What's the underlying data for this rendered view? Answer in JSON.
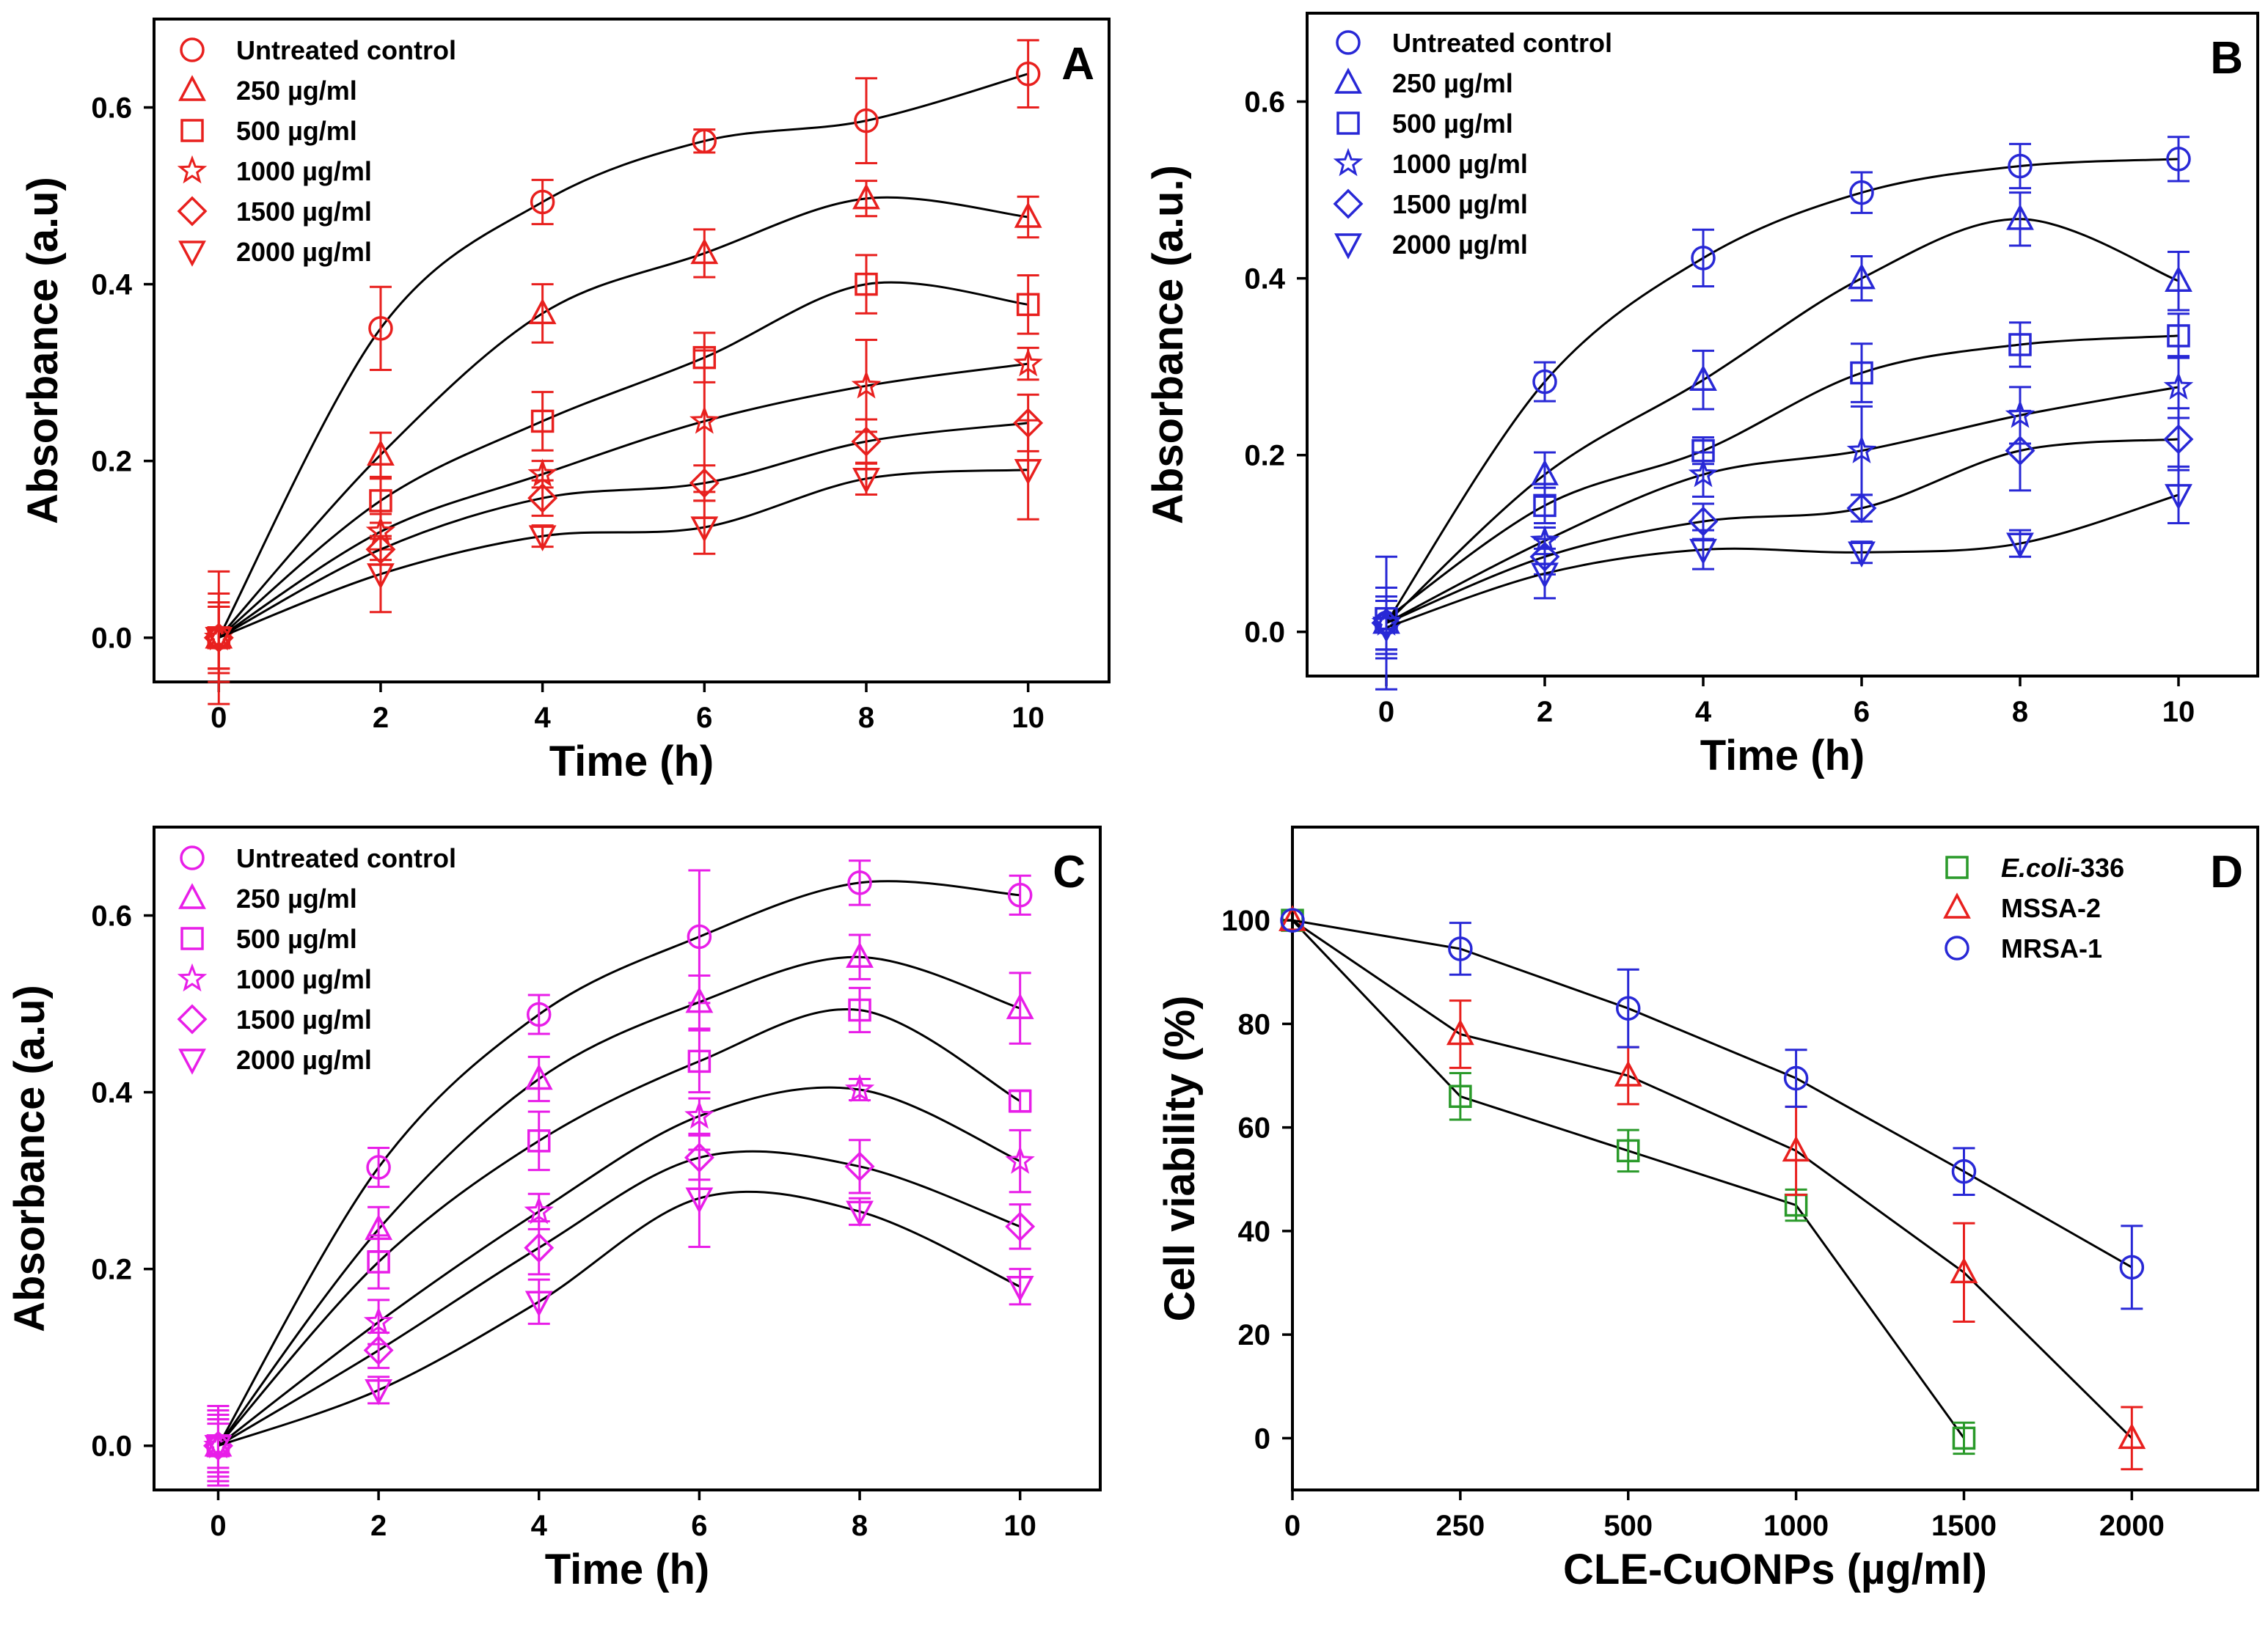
{
  "chart_data": [
    {
      "panel": "A",
      "type": "line",
      "color": "#e8201e",
      "xlabel": "Time (h)",
      "ylabel": "Absorbance (a.u)",
      "xlim": [
        -0.8,
        11
      ],
      "ylim": [
        -0.05,
        0.7
      ],
      "xticks": [
        0,
        2,
        4,
        6,
        8,
        10
      ],
      "xtick_labels": [
        "0",
        "2",
        "4",
        "6",
        "8",
        "10"
      ],
      "yticks": [
        0.0,
        0.2,
        0.4,
        0.6
      ],
      "ytick_labels": [
        "0.0",
        "0.2",
        "0.4",
        "0.6"
      ],
      "x": [
        0,
        2,
        4,
        6,
        8,
        10
      ],
      "series": [
        {
          "name": "Untreated control",
          "marker": "circle",
          "values": [
            0.0,
            0.35,
            0.493,
            0.562,
            0.585,
            0.638
          ],
          "errors": [
            0.075,
            0.047,
            0.025,
            0.013,
            0.048,
            0.038
          ]
        },
        {
          "name": "250 µg/ml",
          "marker": "triangle",
          "values": [
            0.0,
            0.207,
            0.367,
            0.435,
            0.497,
            0.476
          ],
          "errors": [
            0.05,
            0.025,
            0.033,
            0.027,
            0.02,
            0.023
          ]
        },
        {
          "name": "500 µg/ml",
          "marker": "square",
          "values": [
            0.0,
            0.155,
            0.245,
            0.317,
            0.4,
            0.377
          ],
          "errors": [
            0.04,
            0.025,
            0.033,
            0.028,
            0.033,
            0.033
          ]
        },
        {
          "name": "1000 µg/ml",
          "marker": "star",
          "values": [
            0.0,
            0.12,
            0.185,
            0.245,
            0.285,
            0.31
          ],
          "errors": [
            0.035,
            0.02,
            0.015,
            0.08,
            0.052,
            0.018
          ]
        },
        {
          "name": "1500 µg/ml",
          "marker": "diamond",
          "values": [
            0.0,
            0.1,
            0.158,
            0.175,
            0.222,
            0.243
          ],
          "errors": [
            0.035,
            0.012,
            0.02,
            0.02,
            0.025,
            0.032
          ]
        },
        {
          "name": "2000 µg/ml",
          "marker": "triangle-down",
          "values": [
            0.0,
            0.072,
            0.115,
            0.125,
            0.18,
            0.19
          ],
          "errors": [
            0.035,
            0.043,
            0.012,
            0.03,
            0.018,
            0.056
          ]
        }
      ],
      "legend_position": "top-left"
    },
    {
      "panel": "B",
      "type": "line",
      "color": "#2828d6",
      "xlabel": "Time (h)",
      "ylabel": "Absorbance (a.u.)",
      "xlim": [
        -1,
        11
      ],
      "ylim": [
        -0.05,
        0.7
      ],
      "xticks": [
        0,
        2,
        4,
        6,
        8,
        10
      ],
      "xtick_labels": [
        "0",
        "2",
        "4",
        "6",
        "8",
        "10"
      ],
      "yticks": [
        0.0,
        0.2,
        0.4,
        0.6
      ],
      "ytick_labels": [
        "0.0",
        "0.2",
        "0.4",
        "0.6"
      ],
      "x": [
        0,
        2,
        4,
        6,
        8,
        10
      ],
      "series": [
        {
          "name": "Untreated control",
          "marker": "circle",
          "values": [
            0.01,
            0.283,
            0.423,
            0.497,
            0.527,
            0.535
          ],
          "errors": [
            0.075,
            0.022,
            0.032,
            0.023,
            0.025,
            0.025
          ]
        },
        {
          "name": "250 µg/ml",
          "marker": "triangle",
          "values": [
            0.01,
            0.178,
            0.285,
            0.4,
            0.467,
            0.397
          ],
          "errors": [
            0.04,
            0.025,
            0.033,
            0.025,
            0.03,
            0.033
          ]
        },
        {
          "name": "500 µg/ml",
          "marker": "square",
          "values": [
            0.015,
            0.143,
            0.205,
            0.293,
            0.325,
            0.335
          ],
          "errors": [
            0.035,
            0.02,
            0.015,
            0.033,
            0.025,
            0.025
          ]
        },
        {
          "name": "1000 µg/ml",
          "marker": "star",
          "values": [
            0.01,
            0.103,
            0.178,
            0.205,
            0.245,
            0.277
          ],
          "errors": [
            0.03,
            0.015,
            0.025,
            0.05,
            0.032,
            0.035
          ]
        },
        {
          "name": "1500 µg/ml",
          "marker": "diamond",
          "values": [
            0.01,
            0.085,
            0.125,
            0.14,
            0.205,
            0.218
          ],
          "errors": [
            0.03,
            0.02,
            0.02,
            0.015,
            0.045,
            0.035
          ]
        },
        {
          "name": "2000 µg/ml",
          "marker": "triangle-down",
          "values": [
            0.005,
            0.066,
            0.093,
            0.09,
            0.1,
            0.155
          ],
          "errors": [
            0.03,
            0.028,
            0.022,
            0.012,
            0.015,
            0.032
          ]
        }
      ],
      "legend_position": "top-left"
    },
    {
      "panel": "C",
      "type": "line",
      "color": "#e81ee8",
      "xlabel": "Time (h)",
      "ylabel": "Absorbance (a.u)",
      "xlim": [
        -0.8,
        11
      ],
      "ylim": [
        -0.05,
        0.7
      ],
      "xticks": [
        0,
        2,
        4,
        6,
        8,
        10
      ],
      "xtick_labels": [
        "0",
        "2",
        "4",
        "6",
        "8",
        "10"
      ],
      "yticks": [
        0.0,
        0.2,
        0.4,
        0.6
      ],
      "ytick_labels": [
        "0.0",
        "0.2",
        "0.4",
        "0.6"
      ],
      "x": [
        0,
        2,
        4,
        6,
        8,
        10
      ],
      "series": [
        {
          "name": "Untreated control",
          "marker": "circle",
          "values": [
            0.0,
            0.315,
            0.488,
            0.576,
            0.637,
            0.623
          ],
          "errors": [
            0.045,
            0.022,
            0.022,
            0.075,
            0.025,
            0.022
          ]
        },
        {
          "name": "250 µg/ml",
          "marker": "triangle",
          "values": [
            0.0,
            0.245,
            0.415,
            0.502,
            0.553,
            0.495
          ],
          "errors": [
            0.04,
            0.025,
            0.025,
            0.03,
            0.025,
            0.04
          ]
        },
        {
          "name": "500 µg/ml",
          "marker": "square",
          "values": [
            0.0,
            0.208,
            0.345,
            0.435,
            0.493,
            0.39
          ],
          "errors": [
            0.035,
            0.03,
            0.033,
            0.035,
            0.025,
            0.012
          ]
        },
        {
          "name": "1000 µg/ml",
          "marker": "star",
          "values": [
            0.0,
            0.14,
            0.265,
            0.373,
            0.403,
            0.322
          ],
          "errors": [
            0.03,
            0.025,
            0.02,
            0.02,
            0.012,
            0.035
          ]
        },
        {
          "name": "1500 µg/ml",
          "marker": "diamond",
          "values": [
            0.0,
            0.108,
            0.224,
            0.326,
            0.316,
            0.248
          ],
          "errors": [
            0.03,
            0.02,
            0.03,
            0.025,
            0.03,
            0.025
          ]
        },
        {
          "name": "2000 µg/ml",
          "marker": "triangle-down",
          "values": [
            0.0,
            0.063,
            0.163,
            0.28,
            0.265,
            0.18
          ],
          "errors": [
            0.025,
            0.015,
            0.025,
            0.055,
            0.015,
            0.02
          ]
        }
      ],
      "legend_position": "top-left"
    },
    {
      "panel": "D",
      "type": "line",
      "xlabel": "CLE-CuONPs (µg/ml)",
      "ylabel": "Cell viability (%)",
      "xlim": [
        0,
        5.75
      ],
      "ylim": [
        -10,
        118
      ],
      "xticks": [
        0,
        1,
        2,
        3,
        4,
        5
      ],
      "xtick_labels": [
        "0",
        "250",
        "500",
        "1000",
        "1500",
        "2000"
      ],
      "yticks": [
        0,
        20,
        40,
        60,
        80,
        100
      ],
      "ytick_labels": [
        "0",
        "20",
        "40",
        "60",
        "80",
        "100"
      ],
      "series": [
        {
          "name": "E.coli-336",
          "italic_part": "E.coli",
          "suffix": "-336",
          "marker": "square",
          "color": "#2a9a2a",
          "x": [
            0,
            1,
            2,
            3,
            4
          ],
          "values": [
            100,
            66,
            55.5,
            45,
            0
          ],
          "errors": [
            0,
            4.5,
            4,
            3,
            3
          ]
        },
        {
          "name": "MSSA-2",
          "marker": "triangle",
          "color": "#e8201e",
          "x": [
            0,
            1,
            2,
            3,
            4,
            5
          ],
          "values": [
            100,
            78,
            70,
            55.5,
            32,
            0
          ],
          "errors": [
            0,
            6.5,
            5.5,
            8.5,
            9.5,
            6
          ]
        },
        {
          "name": "MRSA-1",
          "marker": "circle",
          "color": "#2828d6",
          "x": [
            0,
            1,
            2,
            3,
            4,
            5
          ],
          "values": [
            100,
            94.5,
            83,
            69.5,
            51.5,
            33
          ],
          "errors": [
            0,
            5,
            7.5,
            5.5,
            4.5,
            8
          ]
        }
      ],
      "legend_position": "top-right"
    }
  ]
}
